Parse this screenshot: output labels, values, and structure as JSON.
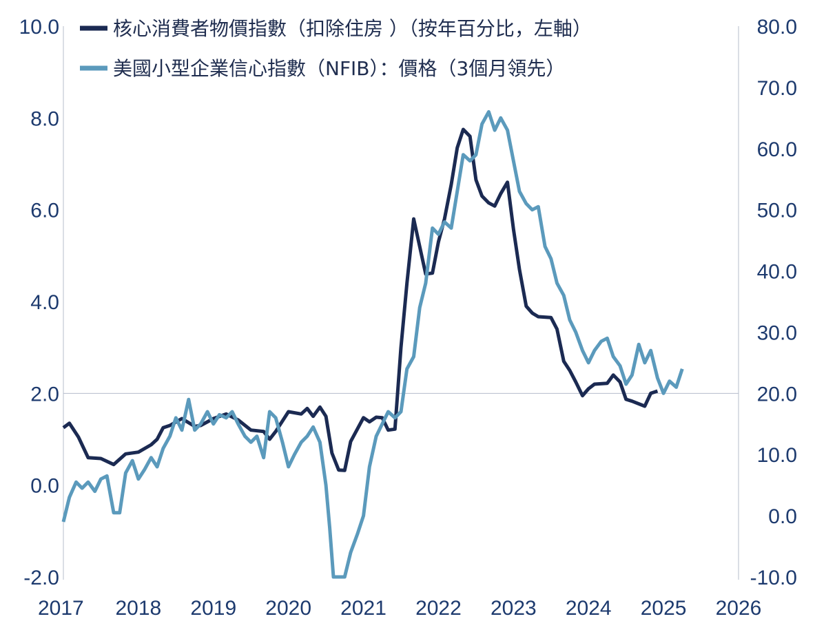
{
  "chart_data": {
    "type": "line",
    "x_ticks": [
      "2017",
      "2018",
      "2019",
      "2020",
      "2021",
      "2022",
      "2023",
      "2024",
      "2025",
      "2026"
    ],
    "xlim": [
      2017,
      2026
    ],
    "y_left": {
      "ticks": [
        "10.0",
        "8.0",
        "6.0",
        "4.0",
        "2.0",
        "0.0",
        "-2.0"
      ],
      "ylim": [
        -2,
        10
      ]
    },
    "y_right": {
      "ticks": [
        "80.0",
        "70.0",
        "60.0",
        "50.0",
        "40.0",
        "30.0",
        "20.0",
        "10.0",
        "0.0",
        "-10.0"
      ],
      "ylim": [
        -10,
        80
      ]
    },
    "reference_line": {
      "axis": "left",
      "value": 2.0,
      "color": "#b5bccb"
    },
    "grid": false,
    "legend_position": "top",
    "series": [
      {
        "name": "核心消費者物價指數（扣除住房 ）（按年百分比，左軸）",
        "axis": "left",
        "color": "#1b2a52",
        "points": [
          [
            2017.0,
            1.25
          ],
          [
            2017.08,
            1.35
          ],
          [
            2017.2,
            1.05
          ],
          [
            2017.33,
            0.6
          ],
          [
            2017.5,
            0.58
          ],
          [
            2017.67,
            0.45
          ],
          [
            2017.83,
            0.68
          ],
          [
            2018.0,
            0.72
          ],
          [
            2018.17,
            0.88
          ],
          [
            2018.25,
            1.0
          ],
          [
            2018.33,
            1.25
          ],
          [
            2018.42,
            1.3
          ],
          [
            2018.58,
            1.45
          ],
          [
            2018.75,
            1.28
          ],
          [
            2018.83,
            1.3
          ],
          [
            2019.0,
            1.45
          ],
          [
            2019.17,
            1.55
          ],
          [
            2019.33,
            1.42
          ],
          [
            2019.5,
            1.2
          ],
          [
            2019.67,
            1.17
          ],
          [
            2019.75,
            1.0
          ],
          [
            2019.83,
            1.17
          ],
          [
            2020.0,
            1.6
          ],
          [
            2020.17,
            1.55
          ],
          [
            2020.25,
            1.67
          ],
          [
            2020.33,
            1.5
          ],
          [
            2020.42,
            1.7
          ],
          [
            2020.5,
            1.5
          ],
          [
            2020.58,
            0.7
          ],
          [
            2020.67,
            0.33
          ],
          [
            2020.75,
            0.32
          ],
          [
            2020.83,
            0.95
          ],
          [
            2021.0,
            1.47
          ],
          [
            2021.08,
            1.38
          ],
          [
            2021.17,
            1.48
          ],
          [
            2021.25,
            1.47
          ],
          [
            2021.33,
            1.2
          ],
          [
            2021.42,
            1.22
          ],
          [
            2021.5,
            3.0
          ],
          [
            2021.58,
            4.4
          ],
          [
            2021.67,
            5.8
          ],
          [
            2021.75,
            5.2
          ],
          [
            2021.83,
            4.6
          ],
          [
            2021.92,
            4.62
          ],
          [
            2022.0,
            5.3
          ],
          [
            2022.08,
            5.8
          ],
          [
            2022.17,
            6.55
          ],
          [
            2022.25,
            7.35
          ],
          [
            2022.33,
            7.75
          ],
          [
            2022.42,
            7.6
          ],
          [
            2022.5,
            6.65
          ],
          [
            2022.58,
            6.3
          ],
          [
            2022.67,
            6.15
          ],
          [
            2022.75,
            6.08
          ],
          [
            2022.83,
            6.35
          ],
          [
            2022.92,
            6.6
          ],
          [
            2023.0,
            5.58
          ],
          [
            2023.08,
            4.7
          ],
          [
            2023.17,
            3.9
          ],
          [
            2023.25,
            3.75
          ],
          [
            2023.33,
            3.67
          ],
          [
            2023.5,
            3.65
          ],
          [
            2023.58,
            3.4
          ],
          [
            2023.67,
            2.7
          ],
          [
            2023.75,
            2.5
          ],
          [
            2023.83,
            2.25
          ],
          [
            2023.92,
            1.95
          ],
          [
            2024.0,
            2.1
          ],
          [
            2024.08,
            2.2
          ],
          [
            2024.25,
            2.22
          ],
          [
            2024.33,
            2.4
          ],
          [
            2024.42,
            2.25
          ],
          [
            2024.5,
            1.87
          ],
          [
            2024.58,
            1.83
          ],
          [
            2024.75,
            1.72
          ],
          [
            2024.83,
            2.0
          ],
          [
            2024.92,
            2.05
          ]
        ]
      },
      {
        "name": "美國小型企業信心指數（NFIB）：價格（3個月領先）",
        "axis": "right",
        "color": "#5b9abc",
        "points": [
          [
            2017.0,
            -1
          ],
          [
            2017.08,
            3
          ],
          [
            2017.17,
            5.5
          ],
          [
            2017.25,
            4.5
          ],
          [
            2017.33,
            5.5
          ],
          [
            2017.42,
            4
          ],
          [
            2017.5,
            6
          ],
          [
            2017.58,
            6.5
          ],
          [
            2017.67,
            0.5
          ],
          [
            2017.75,
            0.5
          ],
          [
            2017.83,
            7
          ],
          [
            2017.92,
            9
          ],
          [
            2018.0,
            6
          ],
          [
            2018.08,
            7.5
          ],
          [
            2018.17,
            9.5
          ],
          [
            2018.25,
            8
          ],
          [
            2018.33,
            11
          ],
          [
            2018.42,
            13
          ],
          [
            2018.5,
            16
          ],
          [
            2018.58,
            14
          ],
          [
            2018.67,
            19
          ],
          [
            2018.75,
            14
          ],
          [
            2018.83,
            15
          ],
          [
            2018.92,
            17
          ],
          [
            2019.0,
            15
          ],
          [
            2019.08,
            16.5
          ],
          [
            2019.17,
            16
          ],
          [
            2019.25,
            17
          ],
          [
            2019.33,
            15
          ],
          [
            2019.42,
            13
          ],
          [
            2019.5,
            12
          ],
          [
            2019.58,
            13
          ],
          [
            2019.67,
            9.5
          ],
          [
            2019.75,
            17
          ],
          [
            2019.83,
            16
          ],
          [
            2019.92,
            12
          ],
          [
            2020.0,
            8
          ],
          [
            2020.08,
            10
          ],
          [
            2020.17,
            12
          ],
          [
            2020.25,
            13
          ],
          [
            2020.33,
            14.5
          ],
          [
            2020.42,
            12
          ],
          [
            2020.5,
            5
          ],
          [
            2020.55,
            -2
          ],
          [
            2020.6,
            -10
          ],
          [
            2020.75,
            -10
          ],
          [
            2020.83,
            -6
          ],
          [
            2020.92,
            -3
          ],
          [
            2021.0,
            0
          ],
          [
            2021.08,
            8
          ],
          [
            2021.17,
            13
          ],
          [
            2021.25,
            15
          ],
          [
            2021.33,
            17
          ],
          [
            2021.42,
            16
          ],
          [
            2021.5,
            17
          ],
          [
            2021.58,
            24
          ],
          [
            2021.67,
            26
          ],
          [
            2021.75,
            34
          ],
          [
            2021.83,
            38
          ],
          [
            2021.92,
            47
          ],
          [
            2022.0,
            46
          ],
          [
            2022.08,
            48
          ],
          [
            2022.17,
            47
          ],
          [
            2022.25,
            53
          ],
          [
            2022.33,
            59
          ],
          [
            2022.42,
            58
          ],
          [
            2022.5,
            59
          ],
          [
            2022.58,
            64
          ],
          [
            2022.67,
            66
          ],
          [
            2022.75,
            63
          ],
          [
            2022.83,
            65
          ],
          [
            2022.92,
            63
          ],
          [
            2023.0,
            58
          ],
          [
            2023.08,
            53
          ],
          [
            2023.17,
            51
          ],
          [
            2023.25,
            50
          ],
          [
            2023.33,
            50.5
          ],
          [
            2023.42,
            44
          ],
          [
            2023.5,
            42
          ],
          [
            2023.58,
            38
          ],
          [
            2023.67,
            36
          ],
          [
            2023.75,
            32
          ],
          [
            2023.83,
            30
          ],
          [
            2023.92,
            27
          ],
          [
            2024.0,
            25
          ],
          [
            2024.08,
            27
          ],
          [
            2024.17,
            28.5
          ],
          [
            2024.25,
            29
          ],
          [
            2024.33,
            26
          ],
          [
            2024.42,
            24.5
          ],
          [
            2024.5,
            21.5
          ],
          [
            2024.58,
            23
          ],
          [
            2024.67,
            28
          ],
          [
            2024.75,
            25
          ],
          [
            2024.83,
            27
          ],
          [
            2024.92,
            22.5
          ],
          [
            2025.0,
            20
          ],
          [
            2025.08,
            22
          ],
          [
            2025.17,
            21
          ],
          [
            2025.25,
            24
          ]
        ]
      }
    ]
  }
}
